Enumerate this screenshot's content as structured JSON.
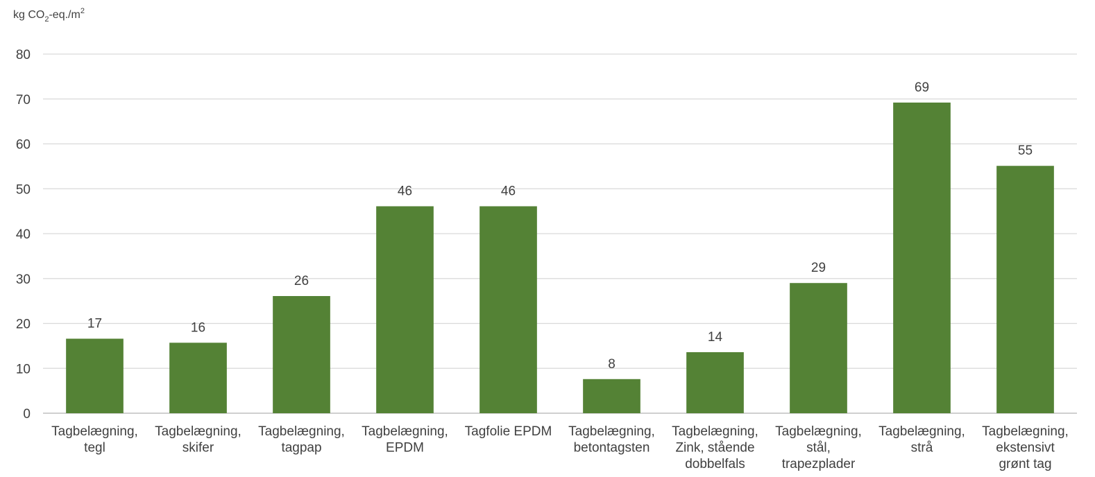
{
  "chart_data": {
    "type": "bar",
    "ylabel_parts": [
      "kg CO",
      "2",
      "-eq./m",
      "2"
    ],
    "ylim": [
      0,
      80
    ],
    "yticks": [
      "0",
      "10",
      "20",
      "30",
      "40",
      "50",
      "60",
      "70",
      "80"
    ],
    "ytick_values": [
      0,
      10,
      20,
      30,
      40,
      50,
      60,
      70,
      80
    ],
    "grid": true,
    "legend": "none",
    "categories": [
      [
        "Tagbelægning,",
        "tegl"
      ],
      [
        "Tagbelægning,",
        "skifer"
      ],
      [
        "Tagbelægning,",
        "tagpap"
      ],
      [
        "Tagbelægning,",
        "EPDM"
      ],
      [
        "Tagfolie EPDM"
      ],
      [
        "Tagbelægning,",
        "betontagsten"
      ],
      [
        "Tagbelægning,",
        "Zink, stående",
        "dobbelfals"
      ],
      [
        "Tagbelægning,",
        "stål,",
        "trapezplader"
      ],
      [
        "Tagbelægning,",
        "strå"
      ],
      [
        "Tagbelægning,",
        "ekstensivt",
        "grønt tag"
      ]
    ],
    "values": [
      16.6,
      15.7,
      26.1,
      46.1,
      46.1,
      7.6,
      13.6,
      29.0,
      69.2,
      55.1
    ],
    "data_labels": [
      "17",
      "16",
      "26",
      "46",
      "46",
      "8",
      "14",
      "29",
      "69",
      "55"
    ],
    "colors": {
      "bar": "#548235",
      "grid": "#d9d9d9",
      "axis": "#bfbfbf",
      "text": "#404040"
    }
  }
}
